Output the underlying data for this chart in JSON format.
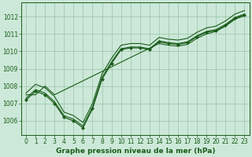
{
  "background_color": "#cce8d8",
  "plot_bg_color": "#cce8d8",
  "grid_color": "#99c4aa",
  "line_color": "#1a5c1a",
  "title": "Graphe pression niveau de la mer (hPa)",
  "title_fontsize": 6.5,
  "tick_fontsize": 5.5,
  "xlim": [
    -0.5,
    23.5
  ],
  "ylim": [
    1005.2,
    1012.8
  ],
  "yticks": [
    1006,
    1007,
    1008,
    1009,
    1010,
    1011,
    1012
  ],
  "xticks": [
    0,
    1,
    2,
    3,
    4,
    5,
    6,
    7,
    8,
    9,
    10,
    11,
    12,
    13,
    14,
    15,
    16,
    17,
    18,
    19,
    20,
    21,
    22,
    23
  ],
  "series": [
    {
      "x": [
        0,
        1,
        2,
        3,
        4,
        5,
        6,
        7,
        8,
        9,
        10,
        11,
        12,
        13,
        14,
        15,
        16,
        17,
        18,
        19,
        20,
        21,
        22,
        23
      ],
      "y": [
        1007.2,
        1007.7,
        1007.5,
        1007.0,
        1006.2,
        1006.0,
        1005.6,
        1006.7,
        1008.4,
        1009.3,
        1010.1,
        1010.2,
        1010.2,
        1010.1,
        1010.55,
        1010.45,
        1010.4,
        1010.5,
        1010.85,
        1011.1,
        1011.2,
        1011.5,
        1011.9,
        1012.1
      ],
      "marker": true
    },
    {
      "x": [
        0,
        1,
        2,
        3,
        14,
        15,
        16,
        17,
        18,
        19,
        20,
        21,
        22,
        23
      ],
      "y": [
        1007.5,
        1007.5,
        1008.0,
        1007.5,
        1010.45,
        1010.35,
        1010.3,
        1010.4,
        1010.75,
        1011.0,
        1011.15,
        1011.45,
        1011.85,
        1012.05
      ],
      "marker": false
    },
    {
      "x": [
        0,
        1,
        2,
        3,
        4,
        5,
        6,
        7,
        8,
        9,
        10,
        11,
        12,
        13,
        14,
        15,
        16,
        17,
        18,
        19,
        20,
        21,
        22,
        23
      ],
      "y": [
        1007.3,
        1007.8,
        1007.6,
        1007.1,
        1006.3,
        1006.1,
        1005.7,
        1006.8,
        1008.5,
        1009.4,
        1010.15,
        1010.25,
        1010.25,
        1010.15,
        1010.6,
        1010.5,
        1010.45,
        1010.55,
        1010.9,
        1011.15,
        1011.25,
        1011.55,
        1011.95,
        1012.15
      ],
      "marker": false
    },
    {
      "x": [
        0,
        1,
        2,
        3,
        4,
        5,
        6,
        7,
        8,
        9,
        10,
        11,
        12,
        13,
        14,
        15,
        16,
        17,
        18,
        19,
        20,
        21,
        22,
        23
      ],
      "y": [
        1007.6,
        1008.1,
        1007.9,
        1007.4,
        1006.5,
        1006.3,
        1005.9,
        1007.0,
        1008.7,
        1009.6,
        1010.35,
        1010.45,
        1010.45,
        1010.35,
        1010.8,
        1010.7,
        1010.65,
        1010.75,
        1011.1,
        1011.35,
        1011.45,
        1011.75,
        1012.15,
        1012.35
      ],
      "marker": false
    }
  ]
}
